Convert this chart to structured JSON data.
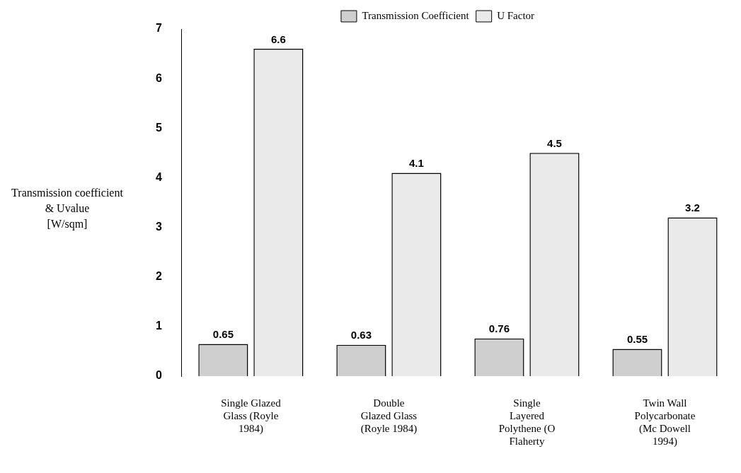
{
  "chart_data": {
    "type": "bar",
    "ylabel": "Transmission coefficient\n& Uvalue\n[W/sqm]",
    "categories": [
      "Single Glazed\nGlass (Royle\n1984)",
      "Double\nGlazed Glass\n(Royle 1984)",
      "Single\nLayered\nPolythene (O\nFlaherty",
      "Twin Wall\nPolycarbonate\n(Mc Dowell\n1994)"
    ],
    "series": [
      {
        "name": "Transmission Coefficient",
        "color": "#cfcfcf",
        "values": [
          0.65,
          0.63,
          0.76,
          0.55
        ]
      },
      {
        "name": "U Factor",
        "color": "#eaeaea",
        "values": [
          6.6,
          4.1,
          4.5,
          3.2
        ]
      }
    ],
    "ylim": [
      0,
      7
    ],
    "yticks": [
      0,
      1,
      2,
      3,
      4,
      5,
      6,
      7
    ],
    "data_labels": true,
    "grid": false,
    "legend": "top"
  }
}
